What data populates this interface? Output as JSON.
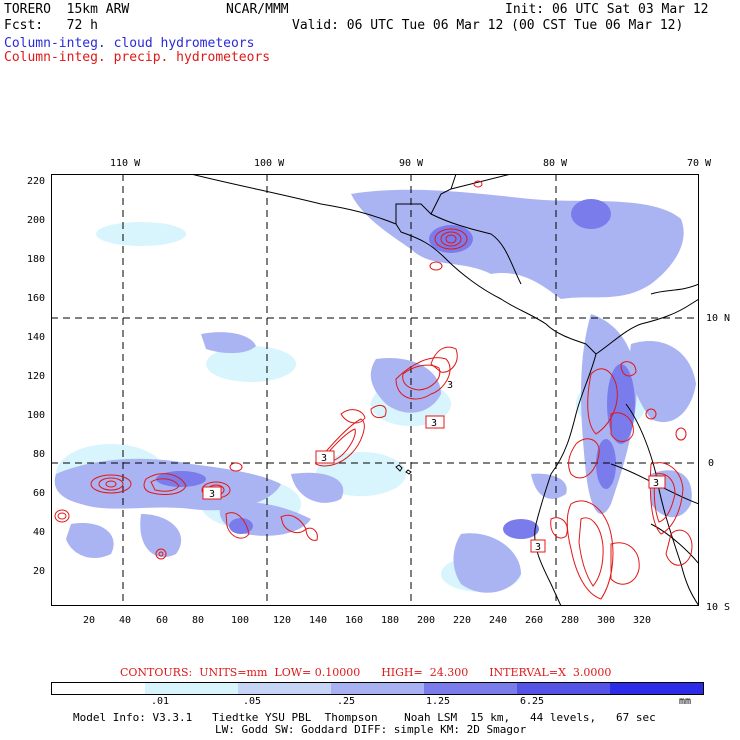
{
  "header": {
    "model": "TORERO  15km ARW",
    "center": "NCAR/MMM",
    "init": "Init: 06 UTC Sat 03 Mar 12",
    "fcst": "Fcst:   72 h",
    "valid": "Valid: 06 UTC Tue 06 Mar 12 (00 CST Tue 06 Mar 12)",
    "field1": "Column-integ. cloud hydrometeors",
    "field2": "Column-integ. precip. hydrometeors"
  },
  "top_labels": [
    "110 W",
    "100 W",
    "90 W",
    "80 W",
    "70 W"
  ],
  "right_labels": [
    "10 N",
    "0",
    "10 S"
  ],
  "y_ticks": [
    "220",
    "200",
    "180",
    "160",
    "140",
    "120",
    "100",
    "80",
    "60",
    "40",
    "20"
  ],
  "x_ticks": [
    "20",
    "40",
    "60",
    "80",
    "100",
    "120",
    "140",
    "160",
    "180",
    "200",
    "220",
    "240",
    "260",
    "280",
    "300",
    "320"
  ],
  "contour_markers": [
    "3",
    "3",
    "3",
    "3",
    "3",
    "3"
  ],
  "contour_info": "CONTOURS:  UNITS=mm  LOW= 0.10000      HIGH=  24.300      INTERVAL=X  3.0000",
  "colorbar": {
    "labels": [
      ".01",
      ".05",
      ".25",
      "1.25",
      "6.25"
    ],
    "unit": "mm",
    "colors": [
      "#ffffff",
      "#d8f4fc",
      "#c6d4f6",
      "#a8b2f2",
      "#7a7ceb",
      "#5552e6",
      "#2c2ce8"
    ]
  },
  "footer": {
    "line1": "Model Info: V3.3.1   Tiedtke YSU PBL  Thompson    Noah LSM  15 km,   44 levels,   67 sec",
    "line2": "LW: Godd SW: Goddard DIFF: simple KM: 2D Smagor"
  }
}
